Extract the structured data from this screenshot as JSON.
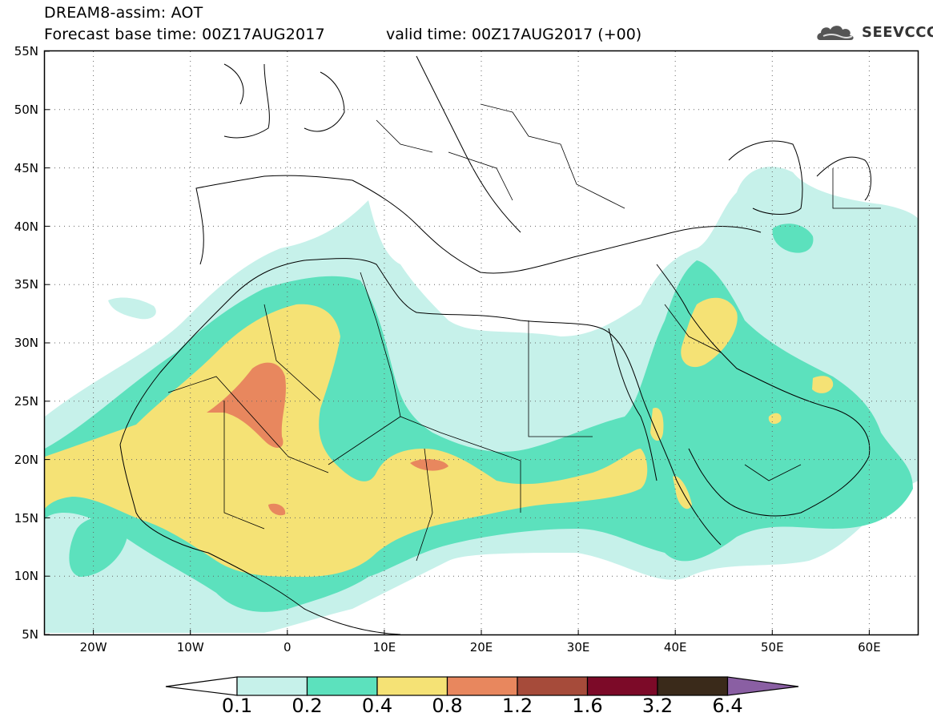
{
  "header": {
    "title": "DREAM8-assim: AOT",
    "base_time": "Forecast base time: 00Z17AUG2017",
    "valid_time": "valid time: 00Z17AUG2017 (+00)",
    "logo_text": "SEEVCCC"
  },
  "map": {
    "lat_labels": [
      "55N",
      "50N",
      "45N",
      "40N",
      "35N",
      "30N",
      "25N",
      "20N",
      "15N",
      "10N",
      "5N"
    ],
    "lon_labels": [
      "20W",
      "10W",
      "0",
      "10E",
      "20E",
      "30E",
      "40E",
      "50E",
      "60E"
    ],
    "lon_range": [
      -25,
      65
    ],
    "lat_range": [
      5,
      55
    ],
    "grid": "dotted"
  },
  "colorbar": {
    "labels": [
      "0.1",
      "0.2",
      "0.4",
      "0.8",
      "1.2",
      "1.6",
      "3.2",
      "6.4"
    ],
    "colors": [
      "#c6f1ea",
      "#5ce1bd",
      "#f5e275",
      "#e8875e",
      "#a64b3a",
      "#7c0a28",
      "#3a2a1a",
      "#8a5fa3"
    ]
  },
  "legend_colors": {
    "level1": "#c6f1ea",
    "level2": "#5ce1bd",
    "level3": "#f5e275",
    "level4": "#e8875e"
  }
}
